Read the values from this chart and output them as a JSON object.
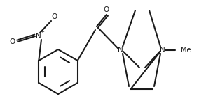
{
  "bg_color": "#ffffff",
  "line_color": "#1a1a1a",
  "line_width": 1.5,
  "font_size": 7.5,
  "figsize": [
    2.94,
    1.58
  ],
  "dpi": 100,
  "xlim": [
    0,
    294
  ],
  "ylim": [
    0,
    158
  ]
}
